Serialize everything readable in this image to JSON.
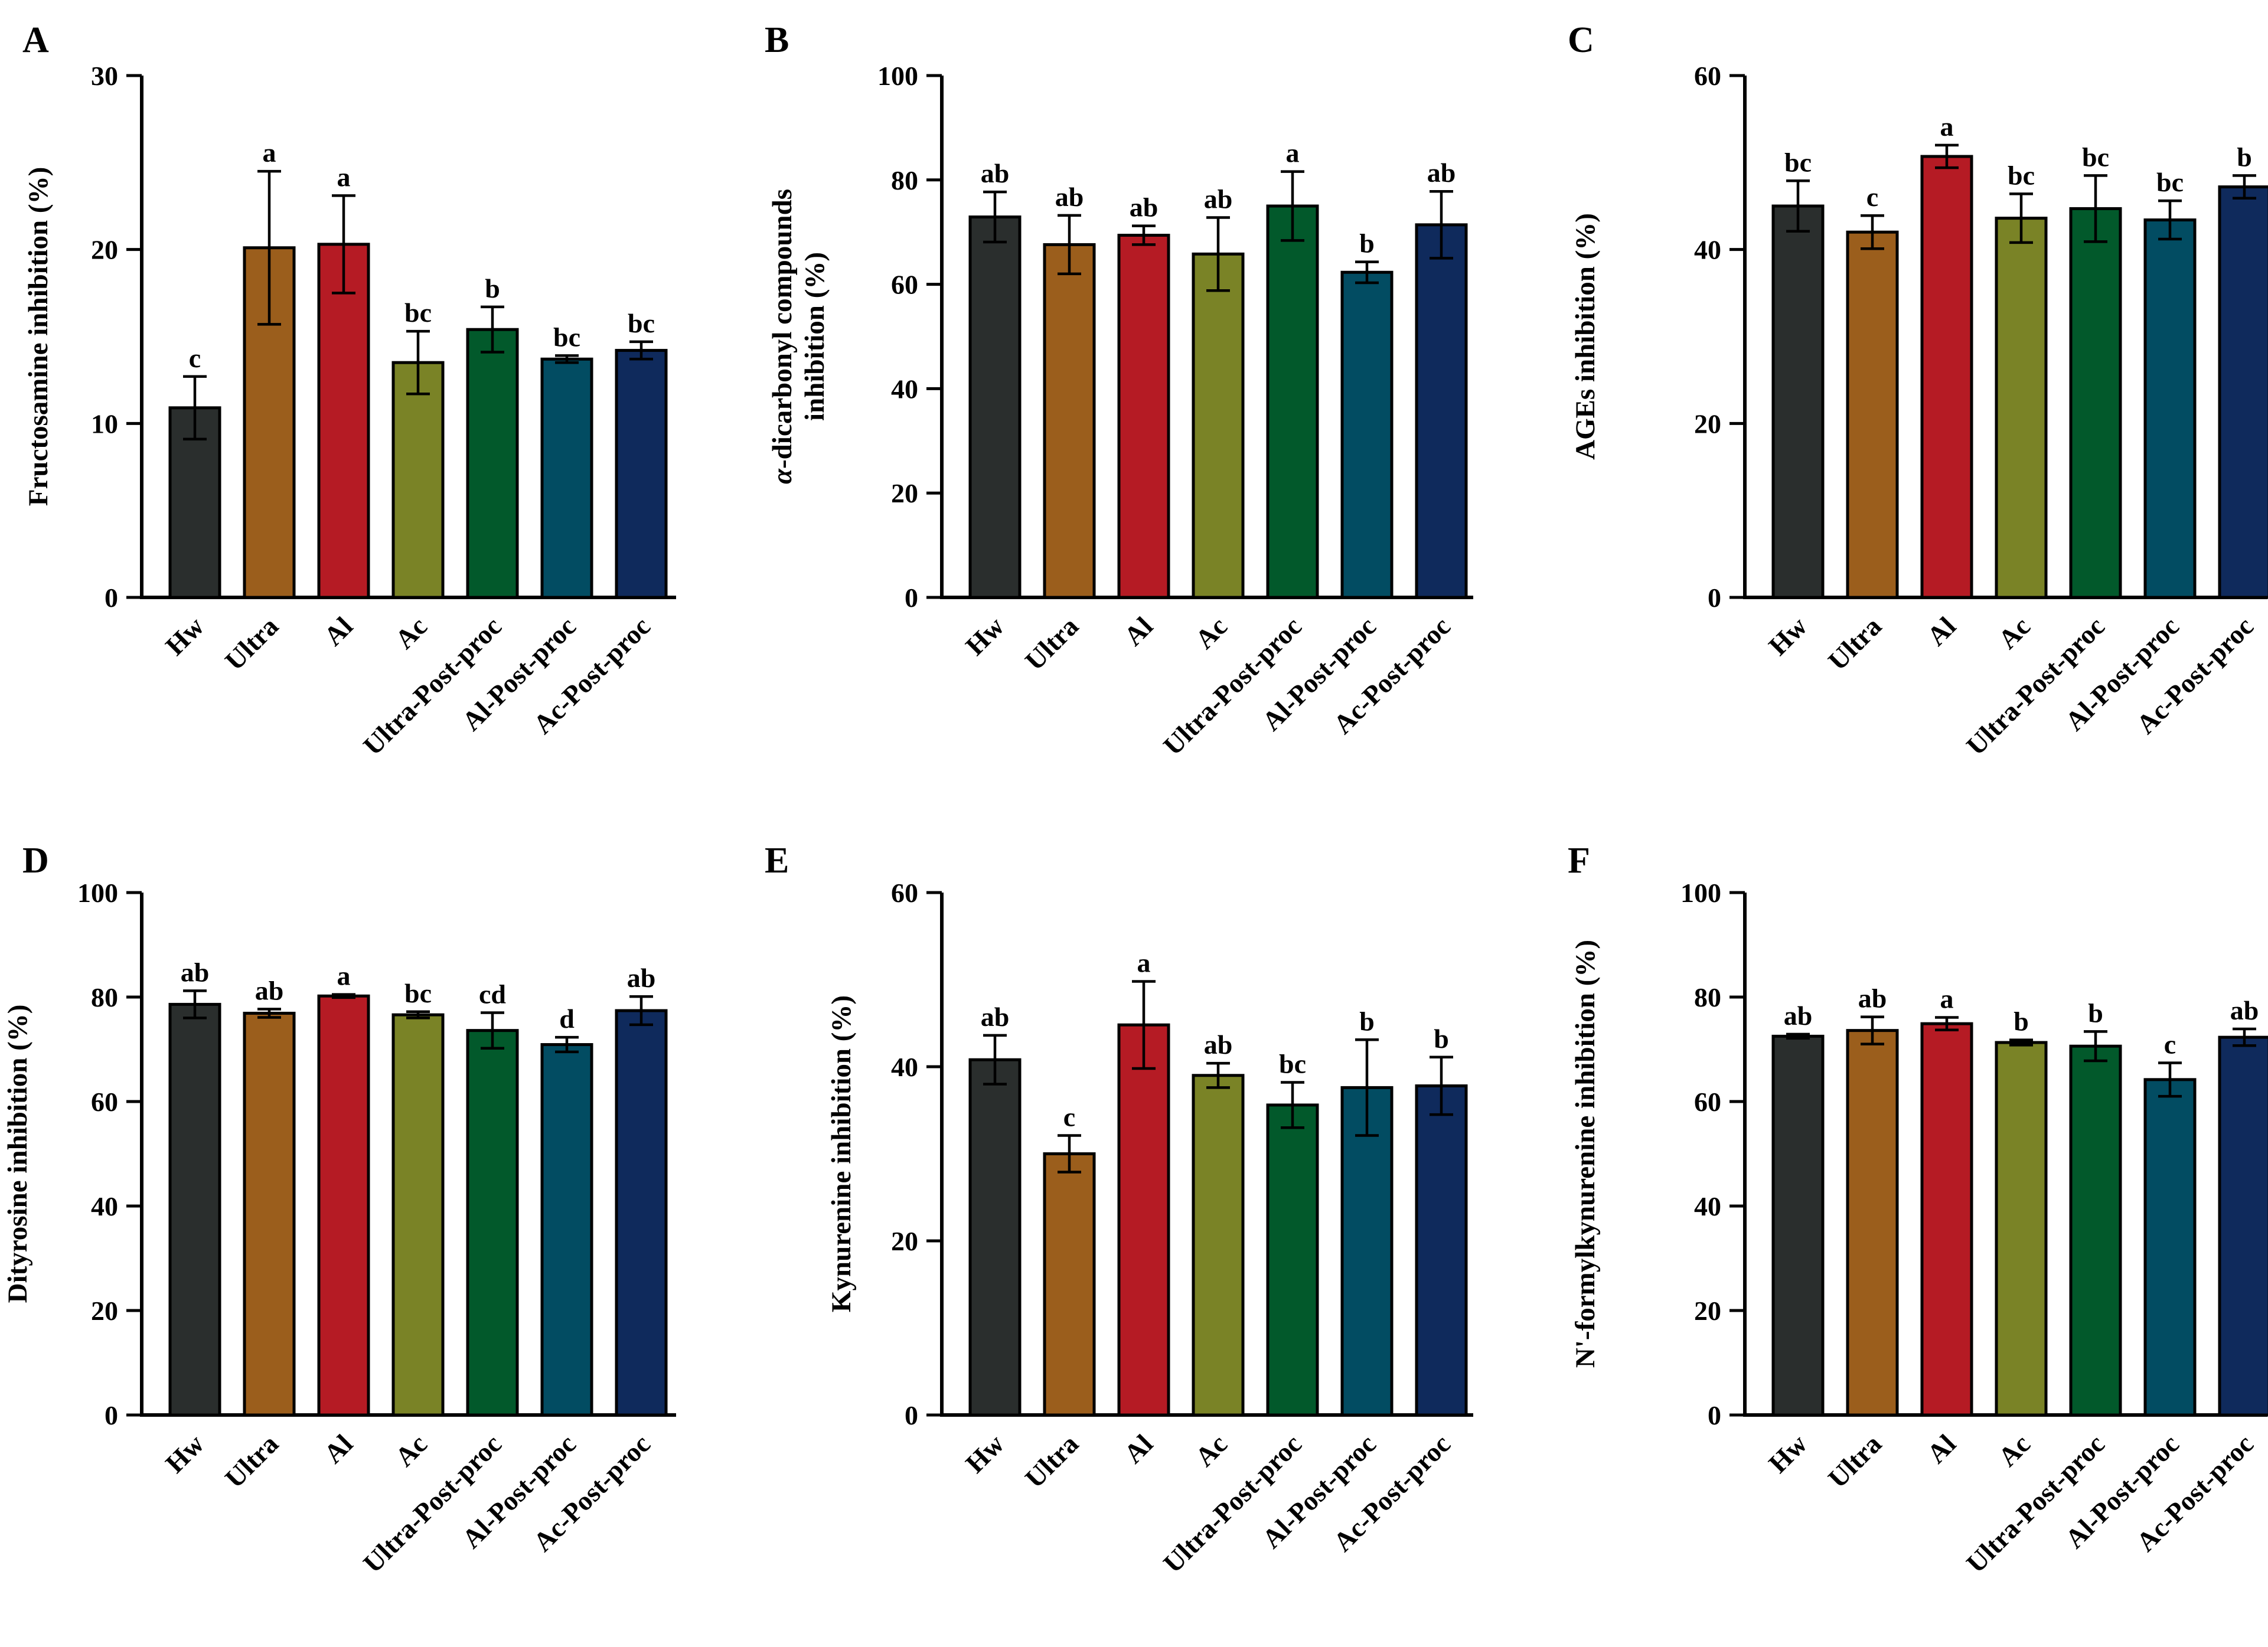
{
  "colors": {
    "Hw": "#2a2e2d",
    "Ultra": "#9b5e1c",
    "Al": "#b51b24",
    "Ac": "#7a8326",
    "Ultra-Post-proc": "#02592b",
    "Al-Post-proc": "#024c62",
    "Ac-Post-proc": "#0f2a5c"
  },
  "chart_data": [
    {
      "panel": "A",
      "type": "bar",
      "categories": [
        "Hw",
        "Ultra",
        "Al",
        "Ac",
        "Ultra-Post-proc",
        "Al-Post-proc",
        "Ac-Post-proc"
      ],
      "values": [
        10.9,
        20.1,
        20.3,
        13.5,
        15.4,
        13.7,
        14.2
      ],
      "errors": [
        1.8,
        4.4,
        2.8,
        1.8,
        1.3,
        0.2,
        0.5
      ],
      "significance": [
        "c",
        "a",
        "a",
        "bc",
        "b",
        "bc",
        "bc"
      ],
      "ylabel": "Fructosamine inhibition (%)",
      "ylabel_lines": [
        "Fructosamine inhibition (%)"
      ],
      "ylim": [
        0,
        30
      ],
      "yticks": [
        0,
        10,
        20,
        30
      ]
    },
    {
      "panel": "B",
      "type": "bar",
      "categories": [
        "Hw",
        "Ultra",
        "Al",
        "Ac",
        "Ultra-Post-proc",
        "Al-Post-proc",
        "Ac-Post-proc"
      ],
      "values": [
        72.9,
        67.6,
        69.4,
        65.8,
        75.0,
        62.3,
        71.4
      ],
      "errors": [
        4.8,
        5.6,
        1.8,
        7.0,
        6.6,
        2.0,
        6.4
      ],
      "significance": [
        "ab",
        "ab",
        "ab",
        "ab",
        "a",
        "b",
        "ab"
      ],
      "ylabel": "α-dicarbonyl compounds inhibition (%)",
      "ylabel_lines": [
        "α-dicarbonyl compounds",
        "inhibition (%)"
      ],
      "ylim": [
        0,
        100
      ],
      "yticks": [
        0,
        20,
        40,
        60,
        80,
        100
      ]
    },
    {
      "panel": "C",
      "type": "bar",
      "categories": [
        "Hw",
        "Ultra",
        "Al",
        "Ac",
        "Ultra-Post-proc",
        "Al-Post-proc",
        "Ac-Post-proc"
      ],
      "values": [
        45.0,
        42.0,
        50.7,
        43.6,
        44.7,
        43.4,
        47.2
      ],
      "errors": [
        2.9,
        1.9,
        1.3,
        2.8,
        3.8,
        2.2,
        1.3
      ],
      "significance": [
        "bc",
        "c",
        "a",
        "bc",
        "bc",
        "bc",
        "b"
      ],
      "ylabel": "AGEs inhibition (%)",
      "ylabel_lines": [
        "AGEs inhibition (%)"
      ],
      "ylim": [
        0,
        60
      ],
      "yticks": [
        0,
        20,
        40,
        60
      ]
    },
    {
      "panel": "D",
      "type": "bar",
      "categories": [
        "Hw",
        "Ultra",
        "Al",
        "Ac",
        "Ultra-Post-proc",
        "Al-Post-proc",
        "Ac-Post-proc"
      ],
      "values": [
        78.6,
        76.9,
        80.2,
        76.6,
        73.6,
        70.9,
        77.4
      ],
      "errors": [
        2.6,
        0.8,
        0.3,
        0.6,
        3.4,
        1.4,
        2.7
      ],
      "significance": [
        "ab",
        "ab",
        "a",
        "bc",
        "cd",
        "d",
        "ab"
      ],
      "ylabel": "Dityrosine inhibition (%)",
      "ylabel_lines": [
        "Dityrosine inhibition (%)"
      ],
      "ylim": [
        0,
        100
      ],
      "yticks": [
        0,
        20,
        40,
        60,
        80,
        100
      ]
    },
    {
      "panel": "E",
      "type": "bar",
      "categories": [
        "Hw",
        "Ultra",
        "Al",
        "Ac",
        "Ultra-Post-proc",
        "Al-Post-proc",
        "Ac-Post-proc"
      ],
      "values": [
        40.8,
        30.0,
        44.8,
        39.0,
        35.6,
        37.6,
        37.8
      ],
      "errors": [
        2.8,
        2.1,
        5.0,
        1.4,
        2.6,
        5.5,
        3.3
      ],
      "significance": [
        "ab",
        "c",
        "a",
        "ab",
        "bc",
        "b",
        "b"
      ],
      "ylabel": "Kynurenine inhibition (%)",
      "ylabel_lines": [
        "Kynurenine inhibition (%)"
      ],
      "ylim": [
        0,
        60
      ],
      "yticks": [
        0,
        20,
        40,
        60
      ]
    },
    {
      "panel": "F",
      "type": "bar",
      "categories": [
        "Hw",
        "Ultra",
        "Al",
        "Ac",
        "Ultra-Post-proc",
        "Al-Post-proc",
        "Ac-Post-proc"
      ],
      "values": [
        72.5,
        73.6,
        74.9,
        71.3,
        70.6,
        64.2,
        72.3
      ],
      "errors": [
        0.4,
        2.6,
        1.2,
        0.5,
        2.8,
        3.2,
        1.6
      ],
      "significance": [
        "ab",
        "ab",
        "a",
        "b",
        "b",
        "c",
        "ab"
      ],
      "ylabel": "N'-formylkynurenine inhibition (%)",
      "ylabel_lines": [
        "N '-formylkynurenine inhibition (%)"
      ],
      "ylim": [
        0,
        100
      ],
      "yticks": [
        0,
        20,
        40,
        60,
        80,
        100
      ]
    }
  ]
}
